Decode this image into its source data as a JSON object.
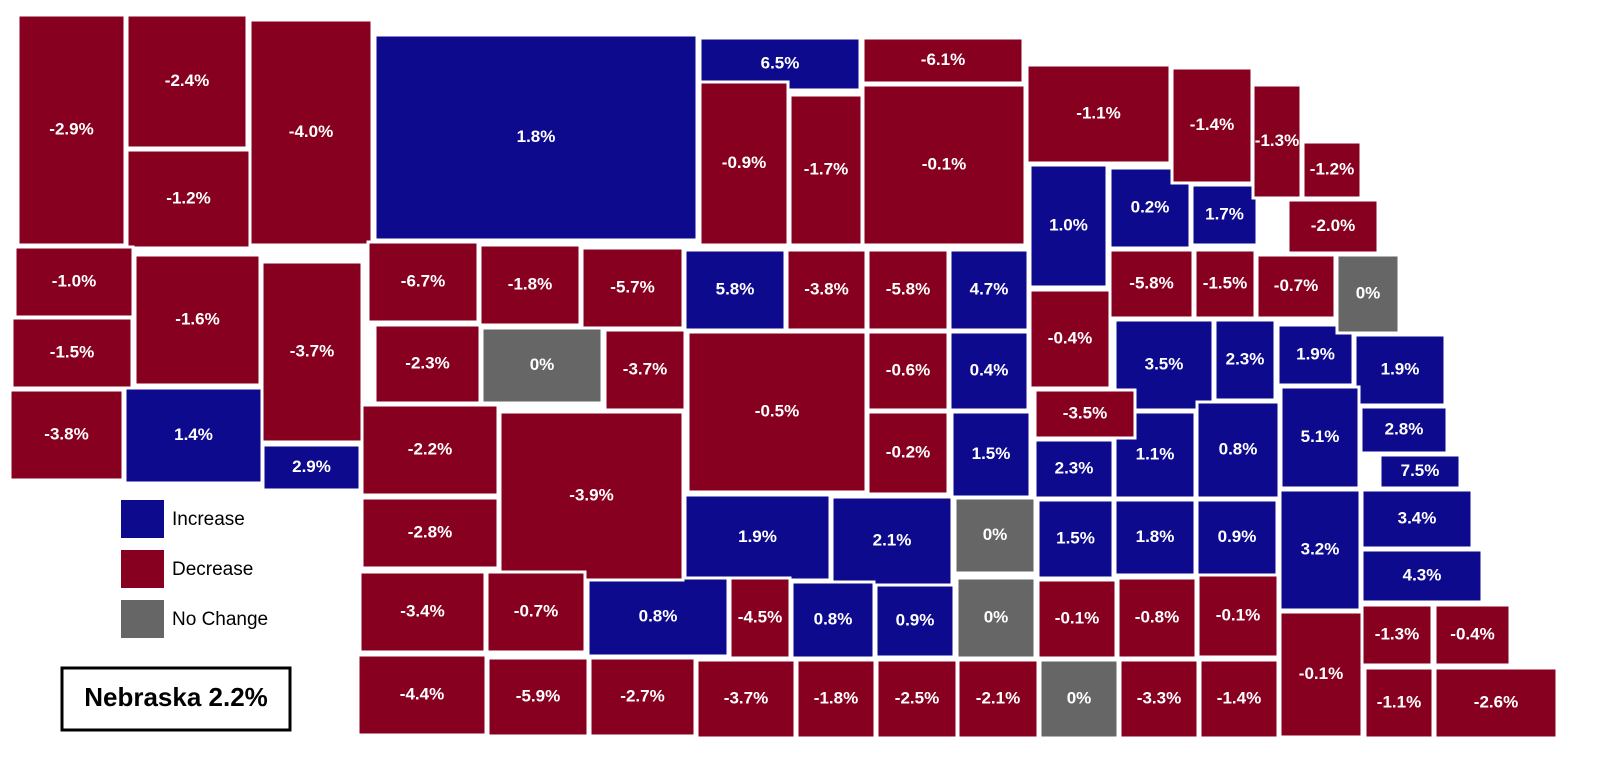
{
  "title": "Nebraska 2.2%",
  "legend": {
    "items": [
      {
        "label": "Increase",
        "color": "#0d0a8e",
        "counties": [
          "1.8%",
          "6.5%",
          "1.0%",
          "0.2%",
          "1.7%",
          "5.8%",
          "4.7%",
          "1.4%",
          "2.9%",
          "0.4%",
          "3.5%",
          "2.3%",
          "1.9%",
          "1.9%",
          "1.5%",
          "2.3%",
          "1.1%",
          "0.8%",
          "5.1%",
          "2.8%",
          "7.5%",
          "1.9%",
          "2.1%",
          "1.5%",
          "1.8%",
          "0.9%",
          "3.2%",
          "3.4%",
          "4.3%",
          "0.8%",
          "0.8%",
          "0.9%"
        ]
      },
      {
        "label": "Decrease",
        "color": "#87001f",
        "counties": [
          "-2.9%",
          "-2.4%",
          "-1.2%",
          "-4.0%",
          "-6.1%",
          "-0.9%",
          "-1.7%",
          "-0.1%",
          "-1.1%",
          "-1.4%",
          "-1.3%",
          "-1.2%",
          "-2.0%",
          "-1.0%",
          "-1.6%",
          "-3.7%",
          "-6.7%",
          "-1.8%",
          "-5.7%",
          "-3.8%",
          "-5.8%",
          "-5.8%",
          "-1.5%",
          "-0.7%",
          "-1.5%",
          "-3.8%",
          "-2.3%",
          "-3.7%",
          "-0.5%",
          "-0.6%",
          "-0.4%",
          "-3.5%",
          "-2.2%",
          "-3.9%",
          "-0.2%",
          "-2.8%",
          "-3.4%",
          "-0.7%",
          "-4.5%",
          "-0.1%",
          "-0.8%",
          "-0.1%",
          "-0.1%",
          "-1.3%",
          "-0.4%",
          "-4.4%",
          "-5.9%",
          "-2.7%",
          "-3.7%",
          "-1.8%",
          "-2.5%",
          "-2.1%",
          "-3.3%",
          "-1.4%",
          "-1.1%",
          "-2.6%"
        ]
      },
      {
        "label": "No Change",
        "color": "#666666",
        "counties": [
          "0%",
          "0%",
          "0%",
          "0%",
          "0%"
        ]
      }
    ]
  }
}
